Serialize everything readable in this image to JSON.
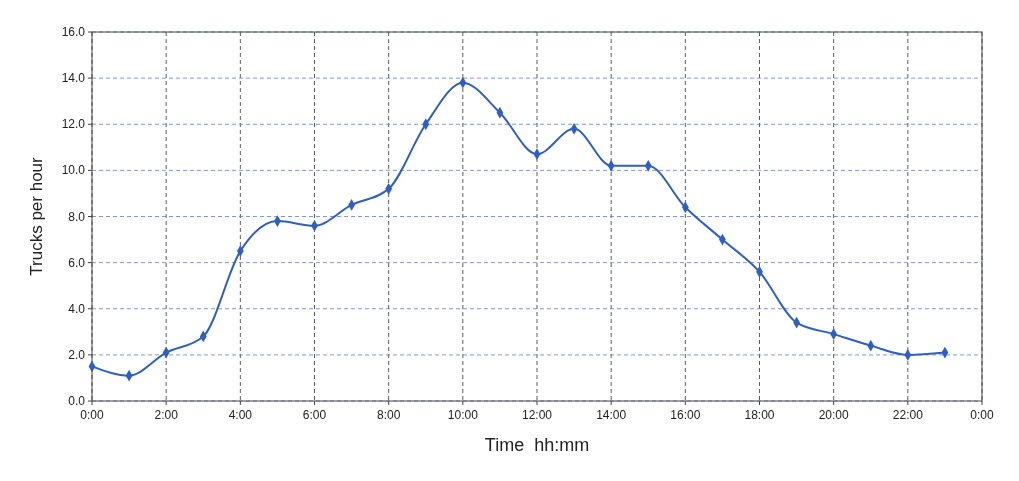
{
  "chart_data": {
    "type": "line",
    "xlabel": "Time  hh:mm",
    "ylabel": "Trucks per hour",
    "x": [
      0,
      1,
      2,
      3,
      4,
      5,
      6,
      7,
      8,
      9,
      10,
      11,
      12,
      13,
      14,
      15,
      16,
      17,
      18,
      19,
      20,
      21,
      22,
      23
    ],
    "series": [
      {
        "color": "#2f5fc4",
        "values": [
          1.5,
          1.1,
          2.1,
          2.8,
          6.5,
          7.8,
          7.6,
          8.5,
          9.2,
          12.0,
          13.8,
          12.5,
          10.7,
          11.8,
          10.2,
          10.2,
          8.4,
          7.0,
          5.6,
          3.4,
          2.9,
          2.4,
          2.0,
          2.1
        ]
      }
    ],
    "xlim": [
      0,
      24
    ],
    "xticks": [
      {
        "value": 0,
        "label": "0:00"
      },
      {
        "value": 2,
        "label": "2:00"
      },
      {
        "value": 4,
        "label": "4:00"
      },
      {
        "value": 6,
        "label": "6:00"
      },
      {
        "value": 8,
        "label": "8:00"
      },
      {
        "value": 10,
        "label": "10:00"
      },
      {
        "value": 12,
        "label": "12:00"
      },
      {
        "value": 14,
        "label": "14:00"
      },
      {
        "value": 16,
        "label": "16:00"
      },
      {
        "value": 18,
        "label": "18:00"
      },
      {
        "value": 20,
        "label": "20:00"
      },
      {
        "value": 22,
        "label": "22:00"
      },
      {
        "value": 24,
        "label": "0:00"
      }
    ],
    "ylim": [
      0,
      16
    ],
    "yticks": [
      {
        "value": 0,
        "label": "0.0"
      },
      {
        "value": 2,
        "label": "2.0"
      },
      {
        "value": 4,
        "label": "4.0"
      },
      {
        "value": 6,
        "label": "6.0"
      },
      {
        "value": 8,
        "label": "8.0"
      },
      {
        "value": 10,
        "label": "10.0"
      },
      {
        "value": 12,
        "label": "12.0"
      },
      {
        "value": 14,
        "label": "14.0"
      },
      {
        "value": 16,
        "label": "16.0"
      }
    ],
    "grid": true,
    "marker": "diamond",
    "line_style": "solid"
  }
}
